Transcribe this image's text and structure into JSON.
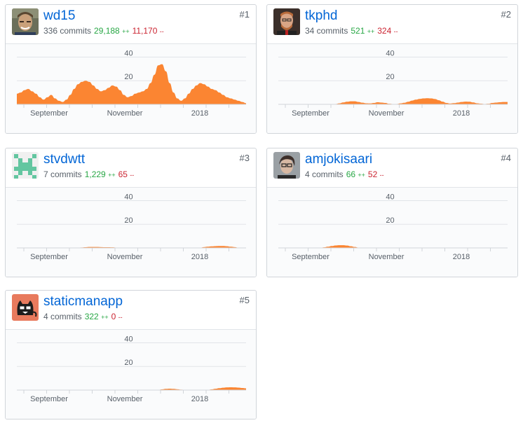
{
  "contributors": [
    {
      "rank": "#1",
      "username": "wd15",
      "commits": "336 commits",
      "additions": "29,188",
      "additions_suffix": "++",
      "deletions": "11,170",
      "deletions_suffix": "--",
      "avatar": "photo-avatar-young-man-icon"
    },
    {
      "rank": "#2",
      "username": "tkphd",
      "commits": "34 commits",
      "additions": "521",
      "additions_suffix": "++",
      "deletions": "324",
      "deletions_suffix": "--",
      "avatar": "photo-avatar-bearded-man-icon"
    },
    {
      "rank": "#3",
      "username": "stvdwtt",
      "commits": "7 commits",
      "additions": "1,229",
      "additions_suffix": "++",
      "deletions": "65",
      "deletions_suffix": "--",
      "avatar": "identicon-green-icon"
    },
    {
      "rank": "#4",
      "username": "amjokisaari",
      "commits": "4 commits",
      "additions": "66",
      "additions_suffix": "++",
      "deletions": "52",
      "deletions_suffix": "--",
      "avatar": "photo-avatar-person-glasses-icon"
    },
    {
      "rank": "#5",
      "username": "staticmanapp",
      "commits": "4 commits",
      "additions": "322",
      "additions_suffix": "++",
      "deletions": "0",
      "deletions_suffix": "--",
      "avatar": "cat-mascot-avatar-icon"
    }
  ],
  "chart_data": [
    {
      "type": "area",
      "series": [
        {
          "values": [
            9,
            10,
            12,
            13,
            11,
            9,
            6,
            4,
            6,
            8,
            5,
            3,
            2,
            4,
            8,
            13,
            17,
            19,
            20,
            19,
            16,
            13,
            11,
            12,
            14,
            16,
            15,
            12,
            8,
            6,
            7,
            9,
            10,
            11,
            13,
            18,
            25,
            33,
            34,
            28,
            18,
            10,
            5,
            3,
            5,
            9,
            13,
            16,
            18,
            17,
            15,
            13,
            12,
            10,
            8,
            6,
            5,
            4,
            3,
            2,
            1
          ]
        }
      ],
      "x_ticks": [
        "September",
        "November",
        "2018"
      ],
      "y_ticks": [
        "40",
        "20"
      ],
      "ylim": [
        0,
        45
      ]
    },
    {
      "type": "area",
      "series": [
        {
          "values": [
            0,
            0,
            0,
            0,
            0,
            0,
            0,
            0,
            0,
            0,
            0,
            0,
            0,
            0,
            0,
            0.3,
            0.8,
            1.6,
            2.2,
            2.6,
            2.6,
            2,
            1.4,
            0.9,
            0.8,
            1.2,
            1.8,
            1.5,
            1.2,
            0.5,
            0.3,
            0.3,
            0.8,
            1.3,
            2.2,
            3.2,
            4,
            4.6,
            5,
            5.2,
            5,
            4.5,
            3.5,
            2.3,
            1.2,
            0.7,
            1,
            1.5,
            2,
            2.3,
            2.2,
            1.6,
            0.9,
            0.6,
            0.3,
            0.5,
            1.2,
            1.5,
            1.8,
            2,
            2
          ]
        }
      ],
      "x_ticks": [
        "September",
        "November",
        "2018"
      ],
      "y_ticks": [
        "40",
        "20"
      ],
      "ylim": [
        0,
        45
      ]
    },
    {
      "type": "area",
      "series": [
        {
          "values": [
            0,
            0,
            0,
            0,
            0,
            0,
            0,
            0,
            0,
            0,
            0,
            0,
            0,
            0,
            0,
            0,
            0.2,
            0.4,
            0.6,
            0.8,
            0.8,
            0.8,
            0.7,
            0.6,
            0.6,
            0.5,
            0.3,
            0.2,
            0,
            0,
            0,
            0,
            0,
            0,
            0,
            0,
            0,
            0,
            0,
            0,
            0,
            0,
            0,
            0,
            0,
            0,
            0,
            0,
            0.3,
            0.7,
            1,
            1.3,
            1.5,
            1.6,
            1.6,
            1.4,
            1,
            0.7,
            0.3,
            0.1,
            0
          ]
        }
      ],
      "x_ticks": [
        "September",
        "November",
        "2018"
      ],
      "y_ticks": [
        "40",
        "20"
      ],
      "ylim": [
        0,
        45
      ]
    },
    {
      "type": "area",
      "series": [
        {
          "values": [
            0,
            0,
            0,
            0,
            0,
            0,
            0,
            0,
            0,
            0,
            0,
            0,
            0.5,
            1,
            1.6,
            2.1,
            2.3,
            2.3,
            2,
            1.4,
            0.8,
            0.3,
            0,
            0,
            0,
            0,
            0,
            0,
            0,
            0,
            0,
            0,
            0,
            0,
            0,
            0,
            0,
            0,
            0,
            0,
            0,
            0,
            0,
            0,
            0,
            0,
            0,
            0,
            0,
            0,
            0,
            0,
            0,
            0,
            0,
            0,
            0,
            0,
            0,
            0,
            0
          ]
        }
      ],
      "x_ticks": [
        "September",
        "November",
        "2018"
      ],
      "y_ticks": [
        "40",
        "20"
      ],
      "ylim": [
        0,
        45
      ]
    },
    {
      "type": "area",
      "series": [
        {
          "values": [
            0,
            0,
            0,
            0,
            0,
            0,
            0,
            0,
            0,
            0,
            0,
            0,
            0,
            0,
            0,
            0,
            0,
            0,
            0,
            0,
            0,
            0,
            0,
            0,
            0,
            0,
            0,
            0,
            0,
            0,
            0,
            0,
            0,
            0,
            0,
            0,
            0,
            0.2,
            0.6,
            1,
            1.2,
            1,
            0.7,
            0.4,
            0.2,
            0.1,
            0,
            0,
            0,
            0,
            0.2,
            0.6,
            1.1,
            1.6,
            2,
            2.3,
            2.4,
            2.3,
            2.1,
            1.8,
            1.5
          ]
        }
      ],
      "x_ticks": [
        "September",
        "November",
        "2018"
      ],
      "y_ticks": [
        "40",
        "20"
      ],
      "ylim": [
        0,
        45
      ]
    }
  ]
}
